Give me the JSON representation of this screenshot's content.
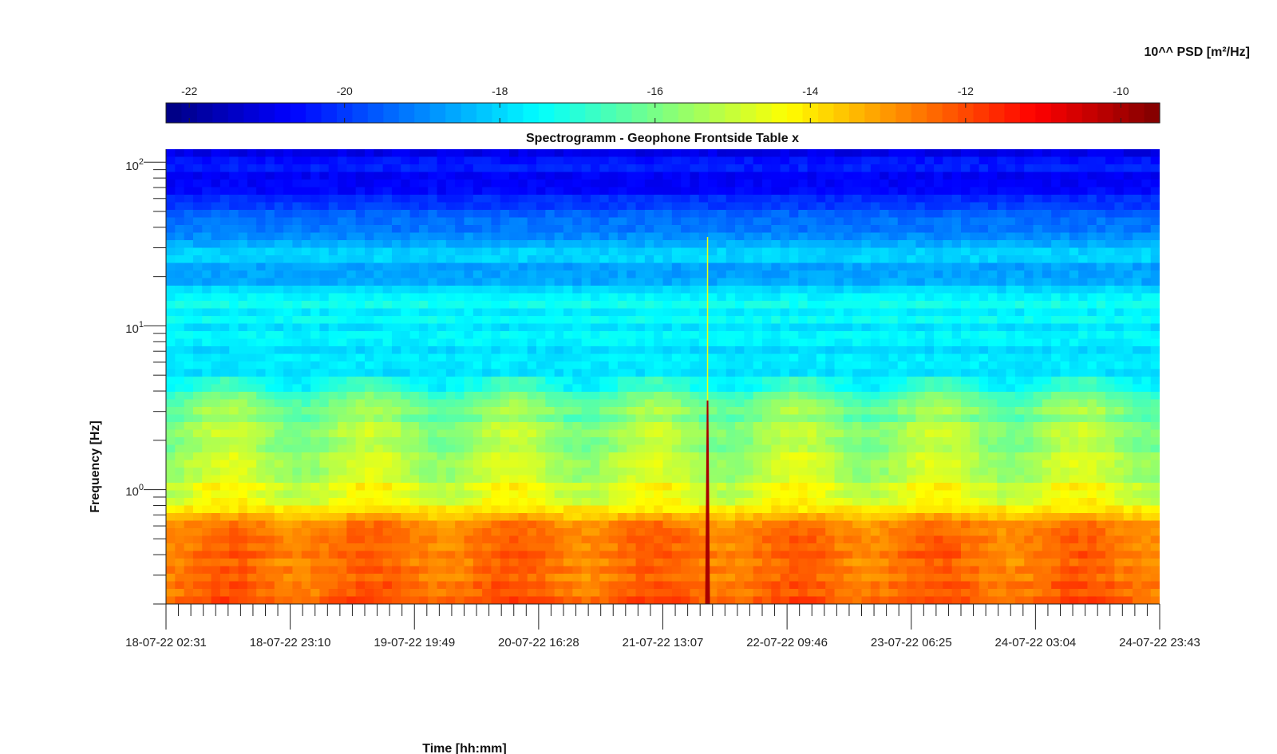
{
  "chart_data": {
    "type": "heatmap",
    "title": "Spectrogramm - Geophone Frontside Table x",
    "xlabel": "Time [hh:mm]",
    "ylabel": "Frequency [Hz]",
    "y_scale": "log",
    "ylim": [
      0.2,
      120
    ],
    "y_major_ticks": [
      1,
      10,
      100
    ],
    "y_tick_labels": [
      {
        "base": "10",
        "exp": "0"
      },
      {
        "base": "10",
        "exp": "1"
      },
      {
        "base": "10",
        "exp": "2"
      }
    ],
    "x_tick_labels": [
      "18-07-22 02:31",
      "18-07-22 23:10",
      "19-07-22 19:49",
      "20-07-22 16:28",
      "21-07-22 13:07",
      "22-07-22 09:46",
      "23-07-22 06:25",
      "24-07-22 03:04",
      "24-07-22 23:43"
    ],
    "colorbar": {
      "label": "10^^ PSD [m²/Hz]",
      "range": [
        -22.3,
        -9.5
      ],
      "ticks": [
        -22,
        -20,
        -18,
        -16,
        -14,
        -12,
        -10
      ],
      "tick_labels": [
        "-22",
        "-20",
        "-18",
        "-16",
        "-14",
        "-12",
        "-10"
      ],
      "colormap": "jet",
      "location": "top"
    },
    "profile_log10_psd_vs_freq": [
      {
        "f": 120,
        "v": -20.8
      },
      {
        "f": 60,
        "v": -20.3
      },
      {
        "f": 40,
        "v": -19.2
      },
      {
        "f": 30,
        "v": -18.2
      },
      {
        "f": 20,
        "v": -18.6
      },
      {
        "f": 15,
        "v": -17.4
      },
      {
        "f": 8,
        "v": -17.9
      },
      {
        "f": 5,
        "v": -17.7
      },
      {
        "f": 3,
        "v": -15.9
      },
      {
        "f": 1.2,
        "v": -15.0
      },
      {
        "f": 0.8,
        "v": -14.5
      },
      {
        "f": 0.6,
        "v": -12.6
      },
      {
        "f": 0.3,
        "v": -12.4
      },
      {
        "f": 0.2,
        "v": -12.2
      }
    ],
    "event_spike": {
      "time_fraction": 0.545,
      "max_freq": 3.5,
      "log10_psd": -10
    }
  }
}
